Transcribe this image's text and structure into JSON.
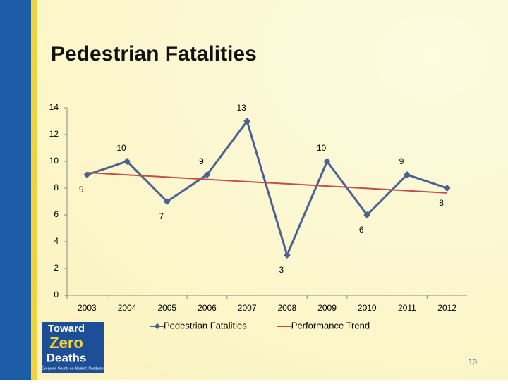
{
  "title": "Pedestrian Fatalities",
  "chart_data": {
    "type": "line",
    "categories": [
      "2003",
      "2004",
      "2005",
      "2006",
      "2007",
      "2008",
      "2009",
      "2010",
      "2011",
      "2012"
    ],
    "series": [
      {
        "name": "Pedestrian Fatalities",
        "color": "#4a6291",
        "values": [
          9,
          10,
          7,
          9,
          13,
          3,
          10,
          6,
          9,
          8
        ],
        "data_labels": true
      },
      {
        "name": "Performance Trend",
        "color": "#c0504d",
        "values": [
          9.16,
          8.99,
          8.82,
          8.65,
          8.48,
          8.32,
          8.15,
          7.98,
          7.81,
          7.64
        ]
      }
    ],
    "ylim": [
      0,
      14
    ],
    "yticks": [
      0,
      2,
      4,
      6,
      8,
      10,
      12,
      14
    ],
    "legend": "bottom"
  },
  "logo": {
    "line1": "Toward",
    "line2": "Zero",
    "line3": "Deaths",
    "tagline": "Everyone Counts on Alaska's Roadways"
  },
  "page_number": "13"
}
